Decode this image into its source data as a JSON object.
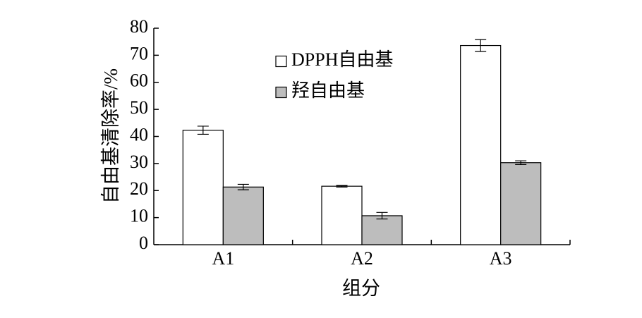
{
  "chart_data": {
    "type": "bar",
    "categories": [
      "A1",
      "A2",
      "A3"
    ],
    "series": [
      {
        "name": "DPPH自由基",
        "color": "#ffffff",
        "values": [
          42.3,
          21.6,
          73.6
        ],
        "errors": [
          1.5,
          0.3,
          2.2
        ]
      },
      {
        "name": "羟自由基",
        "color": "#bdbdbd",
        "values": [
          21.3,
          10.7,
          30.3
        ],
        "errors": [
          1.0,
          1.2,
          0.7
        ]
      }
    ],
    "xlabel": "组分",
    "ylabel": "自由基清除率/%",
    "ylim": [
      0,
      80
    ],
    "yticks": [
      0,
      10,
      20,
      30,
      40,
      50,
      60,
      70,
      80
    ],
    "grid": false,
    "legend_position": "top-center"
  }
}
